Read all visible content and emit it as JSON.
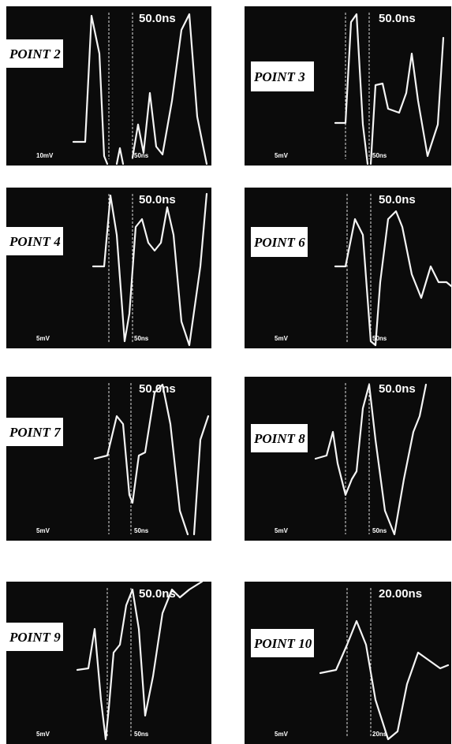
{
  "panels": [
    {
      "label": "POINT 2",
      "timebase": "50.0ns",
      "volts": "10mV",
      "sweep": "50ns"
    },
    {
      "label": "POINT 3",
      "timebase": "50.0ns",
      "volts": "5mV",
      "sweep": "50ns"
    },
    {
      "label": "POINT 4",
      "timebase": "50.0ns",
      "volts": "5mV",
      "sweep": "50ns"
    },
    {
      "label": "POINT 6",
      "timebase": "50.0ns",
      "volts": "5mV",
      "sweep": "50ns"
    },
    {
      "label": "POINT 7",
      "timebase": "50.0ns",
      "volts": "5mV",
      "sweep": "50ns"
    },
    {
      "label": "POINT 8",
      "timebase": "50.0ns",
      "volts": "5mV",
      "sweep": "50ns"
    },
    {
      "label": "POINT 9",
      "timebase": "50.0ns",
      "volts": "5mV",
      "sweep": "50ns"
    },
    {
      "label": "POINT 10",
      "timebase": "20.00ns",
      "volts": "5mV",
      "sweep": "20ns"
    }
  ]
}
